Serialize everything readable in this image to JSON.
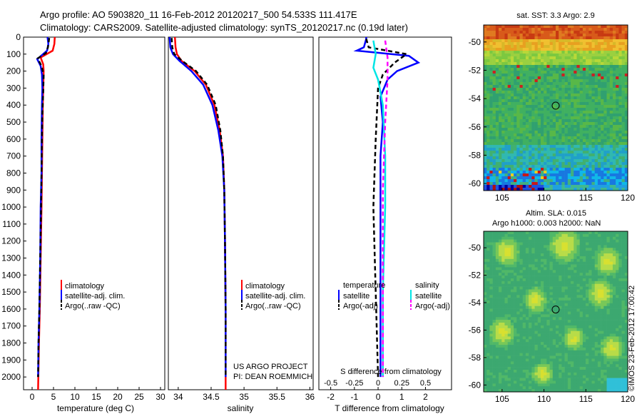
{
  "header": {
    "title_line1": "Argo profile: AO 5903820_11 16-Feb-2012 20120217_500 54.533S 111.417E",
    "title_line2": "Climatology: CARS2009. Satellite-adjusted climatology: synTS_20120217.nc (0.19d later)"
  },
  "credit": {
    "line1": "US ARGO PROJECT",
    "line2": "PI: DEAN ROEMMICH",
    "imos": "©IMOS 23-Feb-2012 17:00:42"
  },
  "colors": {
    "climatology": "#ff0000",
    "satellite": "#0000ff",
    "argo": "#000000",
    "satellite_salinity": "#00e5e5",
    "argo_salinity": "#ff00ff"
  },
  "depth_axis": {
    "ticks": [
      0,
      100,
      200,
      300,
      400,
      500,
      600,
      700,
      800,
      900,
      1000,
      1100,
      1200,
      1300,
      1400,
      1500,
      1600,
      1700,
      1800,
      1900,
      2000
    ],
    "range": [
      0,
      2075
    ]
  },
  "chart_data": [
    {
      "type": "line",
      "panel": "temperature",
      "xlabel": "temperature (deg C)",
      "xticks": [
        0,
        5,
        10,
        15,
        20,
        25,
        30
      ],
      "xlim": [
        -2,
        31
      ],
      "legend": [
        "climatology",
        "satellite-adj. clim.",
        "Argo(..raw -QC)"
      ],
      "series": [
        {
          "name": "climatology",
          "style": "solid",
          "points": [
            [
              5.3,
              0
            ],
            [
              5.2,
              40
            ],
            [
              4.8,
              80
            ],
            [
              2.0,
              120
            ],
            [
              2.6,
              160
            ],
            [
              2.7,
              200
            ],
            [
              2.6,
              300
            ],
            [
              2.5,
              400
            ],
            [
              2.4,
              600
            ],
            [
              2.3,
              800
            ],
            [
              2.2,
              1000
            ],
            [
              2.0,
              1300
            ],
            [
              1.8,
              1600
            ],
            [
              1.6,
              1800
            ],
            [
              1.4,
              2075
            ]
          ]
        },
        {
          "name": "satellite-adj. clim.",
          "style": "solid",
          "points": [
            [
              3.6,
              0
            ],
            [
              3.8,
              40
            ],
            [
              3.5,
              80
            ],
            [
              1.2,
              130
            ],
            [
              2.0,
              170
            ],
            [
              2.3,
              220
            ],
            [
              2.4,
              300
            ],
            [
              2.3,
              400
            ],
            [
              2.2,
              600
            ],
            [
              2.2,
              800
            ],
            [
              2.0,
              1000
            ],
            [
              1.9,
              1300
            ],
            [
              1.7,
              1600
            ],
            [
              1.5,
              1800
            ],
            [
              1.4,
              2000
            ]
          ]
        },
        {
          "name": "Argo(..raw -QC)",
          "style": "dashed",
          "points": [
            [
              4.0,
              5
            ],
            [
              3.7,
              60
            ],
            [
              3.2,
              95
            ],
            [
              1.3,
              125
            ],
            [
              2.2,
              170
            ],
            [
              2.7,
              220
            ],
            [
              2.6,
              320
            ],
            [
              2.4,
              450
            ],
            [
              2.3,
              600
            ],
            [
              2.2,
              800
            ],
            [
              2.1,
              1000
            ],
            [
              1.9,
              1300
            ],
            [
              1.7,
              1600
            ],
            [
              1.5,
              1800
            ],
            [
              1.4,
              2000
            ]
          ]
        }
      ]
    },
    {
      "type": "line",
      "panel": "salinity",
      "xlabel": "salinity",
      "xticks": [
        34,
        34.5,
        35,
        35.5,
        36
      ],
      "xlim": [
        33.85,
        36.05
      ],
      "legend": [
        "climatology",
        "satellite-adj. clim.",
        "Argo(..raw -QC)"
      ],
      "series": [
        {
          "name": "climatology",
          "style": "solid",
          "points": [
            [
              33.95,
              0
            ],
            [
              33.96,
              60
            ],
            [
              33.98,
              100
            ],
            [
              34.05,
              140
            ],
            [
              34.25,
              200
            ],
            [
              34.42,
              280
            ],
            [
              34.55,
              400
            ],
            [
              34.63,
              550
            ],
            [
              34.68,
              700
            ],
            [
              34.7,
              900
            ],
            [
              34.71,
              1200
            ],
            [
              34.72,
              1600
            ],
            [
              34.72,
              2075
            ]
          ]
        },
        {
          "name": "satellite-adj. clim.",
          "style": "solid",
          "points": [
            [
              33.87,
              0
            ],
            [
              33.88,
              60
            ],
            [
              33.92,
              100
            ],
            [
              34.02,
              140
            ],
            [
              34.2,
              200
            ],
            [
              34.38,
              280
            ],
            [
              34.52,
              400
            ],
            [
              34.61,
              550
            ],
            [
              34.67,
              700
            ],
            [
              34.7,
              900
            ],
            [
              34.71,
              1200
            ],
            [
              34.72,
              1600
            ],
            [
              34.72,
              2000
            ]
          ]
        },
        {
          "name": "Argo(..raw -QC)",
          "style": "dashed",
          "points": [
            [
              33.9,
              5
            ],
            [
              33.91,
              60
            ],
            [
              33.94,
              100
            ],
            [
              34.06,
              140
            ],
            [
              34.27,
              200
            ],
            [
              34.44,
              280
            ],
            [
              34.57,
              400
            ],
            [
              34.64,
              550
            ],
            [
              34.68,
              700
            ],
            [
              34.7,
              900
            ],
            [
              34.71,
              1200
            ],
            [
              34.72,
              1600
            ],
            [
              34.72,
              2000
            ]
          ]
        }
      ]
    },
    {
      "type": "line",
      "panel": "difference",
      "xlabel": "T difference from climatology",
      "xlabel_top": "S difference from climatology",
      "xticks": [
        -2,
        -1,
        0,
        1,
        2
      ],
      "xlim": [
        -2.5,
        3.1
      ],
      "xticks_top_labels": [
        "-0.5",
        "-0.25",
        "0",
        "0.25",
        "0.5"
      ],
      "xticks_top_pos": [
        -2,
        -1,
        0,
        1,
        2
      ],
      "legend_titles": [
        "temperature",
        "salinity"
      ],
      "legend": [
        "satellite",
        "Argo(-adj)",
        "satellite",
        "Argo(-adj)"
      ],
      "series": [
        {
          "name": "temperature satellite",
          "style": "solid",
          "points": [
            [
              -0.5,
              0
            ],
            [
              -0.5,
              10
            ],
            [
              -0.6,
              60
            ],
            [
              -0.9,
              80
            ],
            [
              1.3,
              110
            ],
            [
              1.7,
              150
            ],
            [
              0.8,
              200
            ],
            [
              0.4,
              250
            ],
            [
              0.1,
              350
            ],
            [
              0.2,
              500
            ],
            [
              0.1,
              700
            ],
            [
              0.1,
              1000
            ],
            [
              0.1,
              1500
            ],
            [
              0.1,
              2000
            ]
          ]
        },
        {
          "name": "temperature Argo(-adj)",
          "style": "dashed",
          "points": [
            [
              -0.5,
              10
            ],
            [
              -0.4,
              60
            ],
            [
              1.2,
              100
            ],
            [
              0.7,
              150
            ],
            [
              0.2,
              220
            ],
            [
              0.0,
              300
            ],
            [
              -0.1,
              600
            ],
            [
              -0.2,
              1000
            ],
            [
              -0.1,
              1500
            ],
            [
              0.0,
              2000
            ]
          ]
        },
        {
          "name": "salinity satellite",
          "style": "solid",
          "points": [
            [
              -0.2,
              20
            ],
            [
              -0.1,
              100
            ],
            [
              -0.2,
              180
            ],
            [
              0.0,
              250
            ],
            [
              0.2,
              400
            ],
            [
              0.3,
              700
            ],
            [
              0.3,
              1000
            ],
            [
              0.2,
              1500
            ],
            [
              0.2,
              2000
            ]
          ]
        },
        {
          "name": "salinity Argo(-adj)",
          "style": "dashed",
          "points": [
            [
              0.3,
              20
            ],
            [
              0.4,
              120
            ],
            [
              0.4,
              250
            ],
            [
              0.3,
              500
            ],
            [
              0.2,
              900
            ],
            [
              0.2,
              1400
            ],
            [
              0.2,
              2000
            ]
          ]
        }
      ]
    },
    {
      "type": "heatmap",
      "panel": "map-sst",
      "title": "sat. SST: 3.3 Argo: 2.9",
      "xticks": [
        105,
        110,
        115,
        120
      ],
      "yticks": [
        -50,
        -52,
        -54,
        -56,
        -58,
        -60
      ],
      "xlim": [
        102.8,
        120
      ],
      "ylim": [
        -60.5,
        -48.8
      ],
      "marker": [
        111.4,
        -54.5
      ]
    },
    {
      "type": "heatmap",
      "panel": "map-sla",
      "title_line1": "Altim. SLA: 0.015",
      "title_line2": "Argo h1000: 0.003 h2000: NaN",
      "xticks": [
        105,
        110,
        115,
        120
      ],
      "yticks": [
        -50,
        -52,
        -54,
        -56,
        -58,
        -60
      ],
      "xlim": [
        102.8,
        120
      ],
      "ylim": [
        -60.5,
        -48.8
      ],
      "marker": [
        111.4,
        -54.5
      ]
    }
  ]
}
